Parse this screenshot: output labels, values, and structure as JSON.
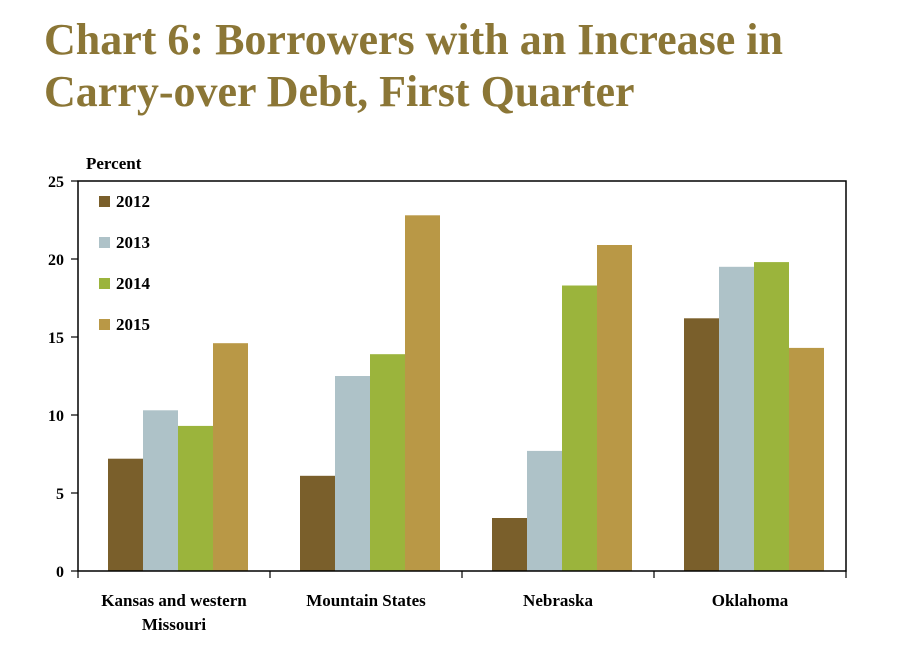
{
  "chart_data": {
    "type": "bar",
    "title_lines": [
      "Chart 6: Borrowers with an Increase in",
      "Carry-over Debt, First Quarter"
    ],
    "ylabel": "Percent",
    "xlabel": "",
    "ylim": [
      0,
      25
    ],
    "yticks": [
      0,
      5,
      10,
      15,
      20,
      25
    ],
    "categories": [
      [
        "Kansas and western",
        "Missouri"
      ],
      [
        "Mountain States"
      ],
      [
        "Nebraska"
      ],
      [
        "Oklahoma"
      ]
    ],
    "series": [
      {
        "name": "2012",
        "color": "#7a5f2b",
        "values": [
          7.2,
          6.1,
          3.4,
          16.2
        ]
      },
      {
        "name": "2013",
        "color": "#aec2c8",
        "values": [
          10.3,
          12.5,
          7.7,
          19.5
        ]
      },
      {
        "name": "2014",
        "color": "#9bb43c",
        "values": [
          9.3,
          13.9,
          18.3,
          19.8
        ]
      },
      {
        "name": "2015",
        "color": "#b99846",
        "values": [
          14.6,
          22.8,
          20.9,
          14.3
        ]
      }
    ],
    "legend": "top-left",
    "grid": false
  }
}
